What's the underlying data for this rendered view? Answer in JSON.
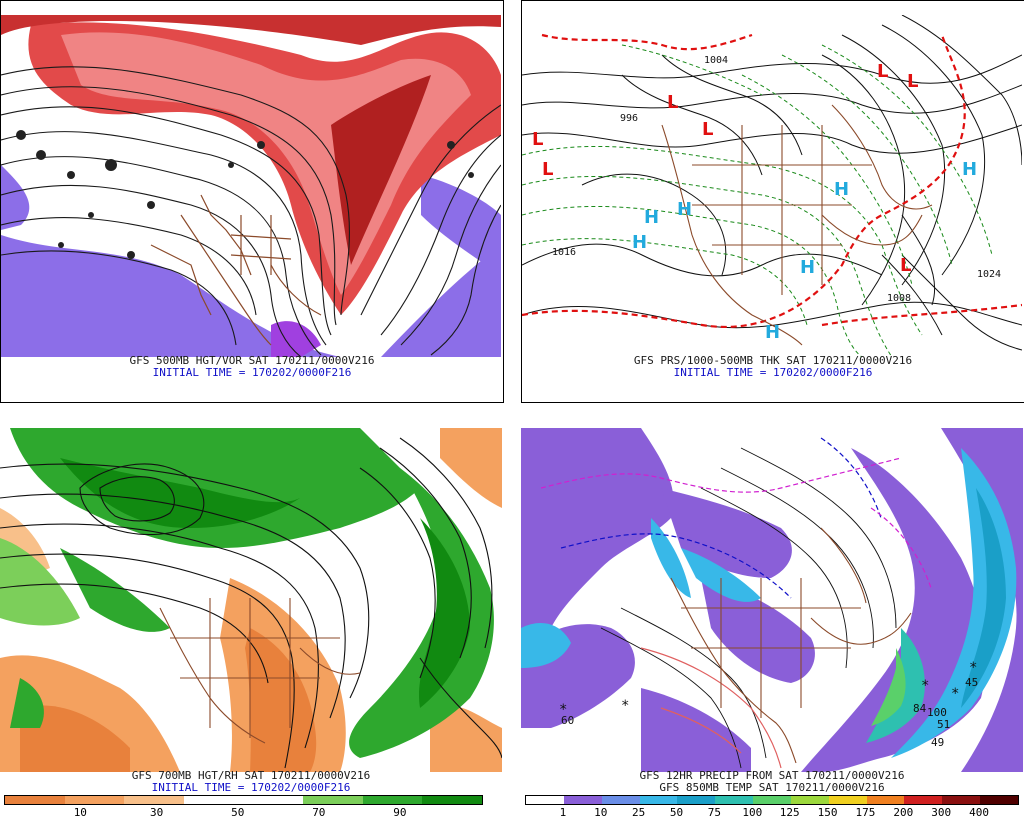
{
  "panels": {
    "top_left": {
      "caption": "GFS 500MB HGT/VOR SAT 170211/0000V216",
      "initial_time": "INITIAL TIME = 170202/0000F216"
    },
    "top_right": {
      "caption": "GFS PRS/1000-500MB THK SAT 170211/0000V216",
      "initial_time": "INITIAL TIME = 170202/0000F216",
      "pressure_labels": [
        "1016",
        "1024",
        "1008",
        "1004",
        "996",
        "1016"
      ],
      "systems": [
        "L",
        "L",
        "L",
        "L",
        "L",
        "L",
        "L",
        "H",
        "H",
        "H",
        "H",
        "H",
        "H",
        "H"
      ]
    },
    "bottom_left": {
      "caption": "GFS 700MB HGT/RH SAT 170211/0000V216",
      "initial_time": "INITIAL TIME = 170202/0000F216",
      "colorbar_ticks": [
        "10",
        "30",
        "50",
        "70",
        "90"
      ],
      "colors": [
        "#e8813c",
        "#f4a15f",
        "#f8c08a",
        "#ffffff",
        "#7ccf5a",
        "#2ea82e",
        "#118a11"
      ]
    },
    "bottom_right": {
      "caption": "GFS 12HR PRECIP FROM SAT 170211/0000V216",
      "caption2": "GFS 850MB TEMP SAT 170211/0000V216",
      "colorbar_ticks": [
        "1",
        "10",
        "25",
        "50",
        "75",
        "100",
        "125",
        "150",
        "175",
        "200",
        "300",
        "400"
      ],
      "colors": [
        "#ffffff",
        "#8a5fd8",
        "#6a8ee8",
        "#38b8e8",
        "#1a9fc8",
        "#2ec0b0",
        "#5ad06a",
        "#9cd83c",
        "#f0d020",
        "#f08020",
        "#d02020",
        "#8a1010",
        "#500000"
      ],
      "values": [
        "60",
        "45",
        "84",
        "100",
        "51",
        "49"
      ]
    }
  }
}
